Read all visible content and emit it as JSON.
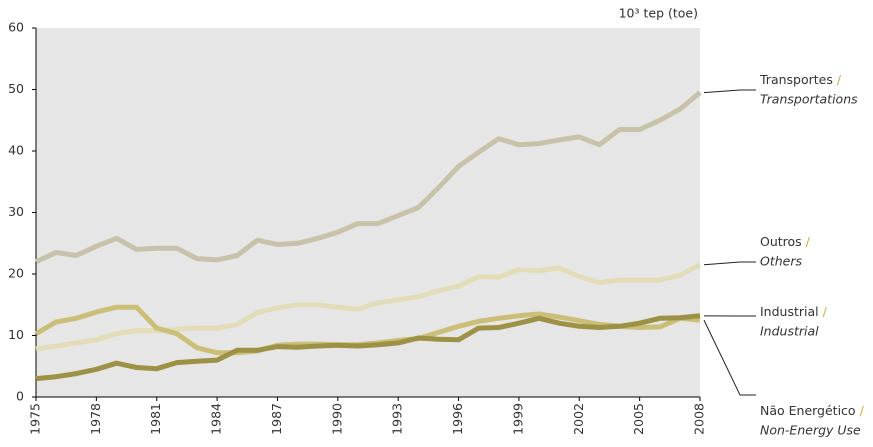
{
  "chart_data": {
    "type": "line",
    "unit_label": "10³ tep (toe)",
    "separator": "/",
    "x": [
      1975,
      1976,
      1977,
      1978,
      1979,
      1980,
      1981,
      1982,
      1983,
      1984,
      1985,
      1986,
      1987,
      1988,
      1989,
      1990,
      1991,
      1992,
      1993,
      1994,
      1995,
      1996,
      1997,
      1998,
      1999,
      2000,
      2001,
      2002,
      2003,
      2004,
      2005,
      2006,
      2007,
      2008
    ],
    "xlim": [
      1975,
      2008
    ],
    "xticks": [
      1975,
      1978,
      1981,
      1984,
      1987,
      1990,
      1993,
      1996,
      1999,
      2002,
      2005,
      2008
    ],
    "ylim": [
      0,
      60
    ],
    "yticks": [
      0,
      10,
      20,
      30,
      40,
      50,
      60
    ],
    "series": [
      {
        "name": "Transportes",
        "name_en": "Transportations",
        "color": "#c9c2aa",
        "values": [
          22,
          23.5,
          23,
          24.5,
          25.8,
          24,
          24.2,
          24.2,
          22.5,
          22.3,
          23,
          25.5,
          24.8,
          25,
          25.8,
          26.8,
          28.2,
          28.2,
          29.5,
          30.8,
          34,
          37.5,
          39.8,
          42,
          41,
          41.2,
          41.8,
          42.3,
          41,
          43.5,
          43.5,
          45,
          46.8,
          49.5
        ]
      },
      {
        "name": "Outros",
        "name_en": "Others",
        "color": "#e2ddb8",
        "values": [
          7.8,
          8.3,
          8.8,
          9.3,
          10.3,
          10.8,
          10.8,
          11,
          11.2,
          11.2,
          11.8,
          13.7,
          14.5,
          15,
          15,
          14.6,
          14.3,
          15.3,
          15.8,
          16.3,
          17.3,
          18,
          19.6,
          19.5,
          20.7,
          20.5,
          21,
          19.6,
          18.6,
          19,
          19,
          19,
          19.8,
          21.5
        ]
      },
      {
        "name": "Industrial",
        "name_en": "Industrial",
        "color": "#9c9144",
        "values": [
          3,
          3.3,
          3.8,
          4.5,
          5.5,
          4.8,
          4.6,
          5.6,
          5.8,
          6,
          7.6,
          7.6,
          8.2,
          8.1,
          8.3,
          8.4,
          8.3,
          8.5,
          8.8,
          9.6,
          9.4,
          9.3,
          11.2,
          11.3,
          12,
          12.8,
          12,
          11.5,
          11.3,
          11.5,
          12,
          12.8,
          12.9,
          13.2
        ]
      },
      {
        "name": "Não Energético",
        "name_en": "Non-Energy Use",
        "color": "#cbbf78",
        "values": [
          10.3,
          12.2,
          12.8,
          13.8,
          14.6,
          14.6,
          11.2,
          10.3,
          8,
          7.2,
          7.2,
          7.5,
          8.4,
          8.6,
          8.6,
          8.5,
          8.5,
          8.8,
          9.2,
          9.5,
          10.5,
          11.5,
          12.3,
          12.8,
          13.2,
          13.5,
          13,
          12.4,
          11.8,
          11.5,
          11.3,
          11.4,
          12.8,
          12.5
        ]
      }
    ]
  }
}
